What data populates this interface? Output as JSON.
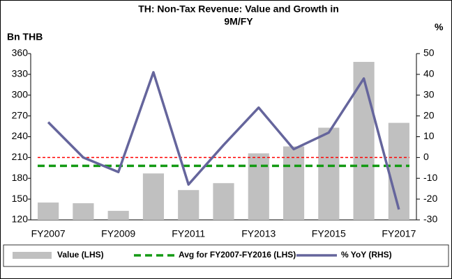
{
  "chart_data": {
    "type": "bar_line",
    "title": [
      "TH: Non-Tax Revenue: Value and Growth in",
      "9M/FY"
    ],
    "y_axis_label": "Bn THB",
    "y2_axis_label": "%",
    "categories": [
      "FY2007",
      null,
      "FY2009",
      null,
      "FY2011",
      null,
      "FY2013",
      null,
      "FY2015",
      null,
      "FY2017"
    ],
    "series": [
      {
        "name": "Value (LHS)",
        "type": "bar",
        "color": "#c0c0c0",
        "axis": "y",
        "values": [
          145,
          144,
          133,
          187,
          163,
          173,
          216,
          226,
          253,
          348,
          260
        ]
      },
      {
        "name": "Avg for FY2007-FY2016 (LHS)",
        "type": "hline",
        "color": "#139a13",
        "axis": "y",
        "value": 198
      },
      {
        "name": "% YoY (RHS)",
        "type": "line",
        "color": "#65659c",
        "axis": "y2",
        "values": [
          17,
          0,
          -7,
          41,
          -13,
          6,
          24,
          4,
          12,
          38,
          -25
        ]
      }
    ],
    "y2_zero_line": {
      "color": "#ff0000"
    },
    "ylim": [
      120,
      360
    ],
    "yticks": [
      120,
      150,
      180,
      210,
      240,
      270,
      300,
      330,
      360
    ],
    "y2lim": [
      -30,
      50
    ],
    "y2ticks": [
      -30,
      -20,
      -10,
      0,
      10,
      20,
      30,
      40,
      50
    ],
    "legend": "bottom"
  }
}
